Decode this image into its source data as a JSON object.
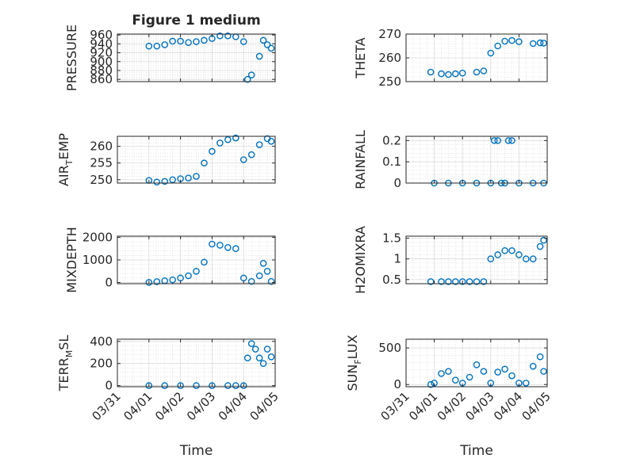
{
  "figure": {
    "title": "Figure 1 medium",
    "x_tick_labels": [
      "03/31",
      "04/01",
      "04/02",
      "04/03",
      "04/04",
      "04/05"
    ],
    "x_label": "Time"
  },
  "chart_data": [
    {
      "type": "scatter",
      "id": "pressure",
      "ylabel": "PRESSURE",
      "ylabel_sub": "",
      "ylabel_after": "",
      "ylim": [
        855,
        962
      ],
      "yticks": [
        860,
        880,
        900,
        920,
        940,
        960
      ],
      "ytick_labels": [
        "860",
        "880",
        "900",
        "920",
        "940",
        "960"
      ],
      "x": [
        "04/01 00:00",
        "04/01 06:00",
        "04/01 12:00",
        "04/01 18:00",
        "04/02 00:00",
        "04/02 06:00",
        "04/02 12:00",
        "04/02 18:00",
        "04/03 00:00",
        "04/03 06:00",
        "04/03 12:00",
        "04/03 18:00",
        "04/04 00:00",
        "04/04 03:00",
        "04/04 06:00",
        "04/04 12:00",
        "04/04 15:00",
        "04/04 18:00",
        "04/04 21:00"
      ],
      "y": [
        935,
        935,
        938,
        946,
        946,
        943,
        945,
        948,
        952,
        958,
        958,
        956,
        945,
        860,
        870,
        912,
        948,
        938,
        930
      ]
    },
    {
      "type": "scatter",
      "id": "theta",
      "ylabel": "THETA",
      "ylabel_sub": "",
      "ylabel_after": "",
      "ylim": [
        250,
        270
      ],
      "yticks": [
        250,
        260,
        270
      ],
      "ytick_labels": [
        "250",
        "260",
        "270"
      ],
      "x": [
        "03/31 21:00",
        "04/01 06:00",
        "04/01 12:00",
        "04/01 18:00",
        "04/02 00:00",
        "04/02 12:00",
        "04/02 18:00",
        "04/03 00:00",
        "04/03 06:00",
        "04/03 12:00",
        "04/03 18:00",
        "04/04 00:00",
        "04/04 12:00",
        "04/04 18:00",
        "04/04 21:00"
      ],
      "y": [
        254,
        253.3,
        253,
        253.3,
        253.6,
        254,
        254.5,
        262,
        265,
        267,
        267.3,
        266.8,
        266,
        266.3,
        266.2
      ]
    },
    {
      "type": "scatter",
      "id": "air_temp",
      "ylabel": "AIR",
      "ylabel_sub": "T",
      "ylabel_after": "EMP",
      "ylim": [
        249,
        263
      ],
      "yticks": [
        250,
        255,
        260
      ],
      "ytick_labels": [
        "250",
        "255",
        "260"
      ],
      "x": [
        "04/01 00:00",
        "04/01 06:00",
        "04/01 12:00",
        "04/01 18:00",
        "04/02 00:00",
        "04/02 06:00",
        "04/02 12:00",
        "04/02 18:00",
        "04/03 00:00",
        "04/03 06:00",
        "04/03 12:00",
        "04/03 18:00",
        "04/04 00:00",
        "04/04 06:00",
        "04/04 12:00",
        "04/04 18:00",
        "04/04 21:00"
      ],
      "y": [
        249.8,
        249.3,
        249.5,
        250,
        250.3,
        250.5,
        251,
        255,
        258.5,
        261,
        262,
        262.5,
        256,
        257.5,
        260.5,
        262.3,
        261.5
      ]
    },
    {
      "type": "scatter",
      "id": "rainfall",
      "ylabel": "RAINFALL",
      "ylabel_sub": "",
      "ylabel_after": "",
      "ylim": [
        0,
        0.22
      ],
      "yticks": [
        0,
        0.1,
        0.2
      ],
      "ytick_labels": [
        "0",
        "0.1",
        "0.2"
      ],
      "x": [
        "04/01 00:00",
        "04/01 12:00",
        "04/02 00:00",
        "04/02 12:00",
        "04/03 00:00",
        "04/03 03:00",
        "04/03 06:00",
        "04/03 09:00",
        "04/03 12:00",
        "04/03 15:00",
        "04/03 18:00",
        "04/04 00:00",
        "04/04 12:00",
        "04/04 21:00"
      ],
      "y": [
        0,
        0,
        0,
        0,
        0,
        0.2,
        0.2,
        0,
        0,
        0.2,
        0.2,
        0,
        0,
        0
      ]
    },
    {
      "type": "scatter",
      "id": "mixdepth",
      "ylabel": "MIXDEPTH",
      "ylabel_sub": "",
      "ylabel_after": "",
      "ylim": [
        -50,
        2050
      ],
      "yticks": [
        0,
        1000,
        2000
      ],
      "ytick_labels": [
        "0",
        "1000",
        "2000"
      ],
      "x": [
        "04/01 00:00",
        "04/01 06:00",
        "04/01 12:00",
        "04/01 18:00",
        "04/02 00:00",
        "04/02 06:00",
        "04/02 12:00",
        "04/02 18:00",
        "04/03 00:00",
        "04/03 06:00",
        "04/03 12:00",
        "04/03 18:00",
        "04/04 00:00",
        "04/04 06:00",
        "04/04 12:00",
        "04/04 15:00",
        "04/04 18:00",
        "04/04 21:00"
      ],
      "y": [
        10,
        40,
        80,
        120,
        200,
        300,
        500,
        900,
        1700,
        1650,
        1550,
        1500,
        200,
        50,
        300,
        850,
        500,
        50
      ]
    },
    {
      "type": "scatter",
      "id": "h2omixra",
      "ylabel": "H2OMIXRA",
      "ylabel_sub": "",
      "ylabel_after": "",
      "ylim": [
        0.4,
        1.55
      ],
      "yticks": [
        0.5,
        1,
        1.5
      ],
      "ytick_labels": [
        "0.5",
        "1",
        "1.5"
      ],
      "x": [
        "03/31 21:00",
        "04/01 06:00",
        "04/01 12:00",
        "04/01 18:00",
        "04/02 00:00",
        "04/02 06:00",
        "04/02 12:00",
        "04/02 18:00",
        "04/03 00:00",
        "04/03 06:00",
        "04/03 12:00",
        "04/03 18:00",
        "04/04 00:00",
        "04/04 06:00",
        "04/04 12:00",
        "04/04 18:00",
        "04/04 21:00"
      ],
      "y": [
        0.45,
        0.45,
        0.45,
        0.45,
        0.45,
        0.45,
        0.45,
        0.45,
        1,
        1.1,
        1.2,
        1.2,
        1.1,
        1,
        1,
        1.3,
        1.45
      ]
    },
    {
      "type": "scatter",
      "id": "terr_msl",
      "ylabel": "TERR",
      "ylabel_sub": "M",
      "ylabel_after": "SL",
      "ylim": [
        -10,
        420
      ],
      "yticks": [
        0,
        200,
        400
      ],
      "ytick_labels": [
        "0",
        "200",
        "400"
      ],
      "x": [
        "04/01 00:00",
        "04/01 12:00",
        "04/02 00:00",
        "04/02 12:00",
        "04/03 00:00",
        "04/03 12:00",
        "04/03 18:00",
        "04/04 00:00",
        "04/04 03:00",
        "04/04 06:00",
        "04/04 09:00",
        "04/04 12:00",
        "04/04 15:00",
        "04/04 18:00",
        "04/04 21:00"
      ],
      "y": [
        0,
        0,
        0,
        0,
        0,
        0,
        0,
        0,
        250,
        380,
        330,
        250,
        200,
        330,
        260
      ]
    },
    {
      "type": "scatter",
      "id": "sun_flux",
      "ylabel": "SUN",
      "ylabel_sub": "F",
      "ylabel_after": "LUX",
      "ylim": [
        -30,
        620
      ],
      "yticks": [
        0,
        500
      ],
      "ytick_labels": [
        "0",
        "500"
      ],
      "x": [
        "03/31 21:00",
        "04/01 00:00",
        "04/01 06:00",
        "04/01 12:00",
        "04/01 18:00",
        "04/02 00:00",
        "04/02 06:00",
        "04/02 12:00",
        "04/02 18:00",
        "04/03 00:00",
        "04/03 06:00",
        "04/03 12:00",
        "04/03 18:00",
        "04/04 00:00",
        "04/04 06:00",
        "04/04 12:00",
        "04/04 18:00",
        "04/04 21:00"
      ],
      "y": [
        0,
        20,
        150,
        180,
        60,
        20,
        100,
        270,
        180,
        20,
        170,
        210,
        120,
        20,
        20,
        250,
        380,
        180
      ]
    }
  ]
}
